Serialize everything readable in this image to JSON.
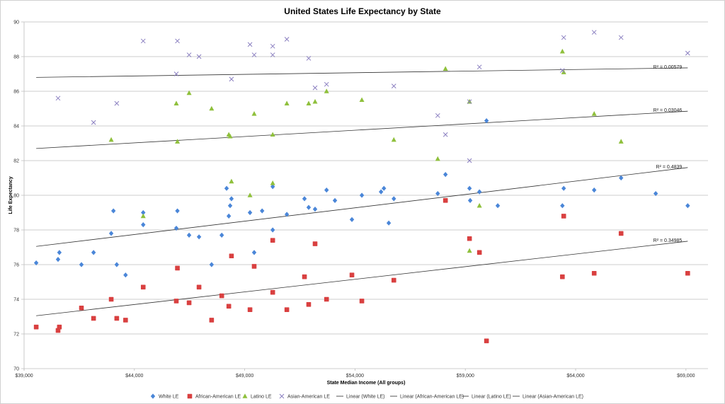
{
  "chart_data": {
    "type": "scatter",
    "title": "United States Life Expectancy by State",
    "xlabel": "State Median Income (All groups)",
    "ylabel": "Life Expectancy",
    "xlim": [
      39000,
      70000
    ],
    "ylim": [
      70,
      90
    ],
    "xticks": [
      39000,
      44000,
      49000,
      54000,
      59000,
      64000,
      69000
    ],
    "xtick_labels": [
      "$39,000",
      "$44,000",
      "$49,000",
      "$54,000",
      "$59,000",
      "$64,000",
      "$69,000"
    ],
    "yticks": [
      70,
      72,
      74,
      76,
      78,
      80,
      82,
      84,
      86,
      88,
      90
    ],
    "ytick_labels": [
      "70",
      "72",
      "74",
      "76",
      "78",
      "80",
      "82",
      "84",
      "86",
      "88",
      "90"
    ],
    "grid": true,
    "legend_position": "bottom",
    "series": [
      {
        "name": "White LE",
        "marker": "diamond",
        "color": "#4a86d8",
        "points": [
          [
            39550,
            76.1
          ],
          [
            40540,
            76.3
          ],
          [
            40600,
            76.7
          ],
          [
            41600,
            76.0
          ],
          [
            42150,
            76.7
          ],
          [
            42950,
            77.8
          ],
          [
            43050,
            79.1
          ],
          [
            43200,
            76.0
          ],
          [
            43600,
            75.4
          ],
          [
            44400,
            79.0
          ],
          [
            44400,
            78.3
          ],
          [
            45900,
            78.1
          ],
          [
            45950,
            79.1
          ],
          [
            46480,
            77.7
          ],
          [
            46930,
            77.6
          ],
          [
            47500,
            76.0
          ],
          [
            47960,
            77.7
          ],
          [
            48180,
            80.4
          ],
          [
            48280,
            78.8
          ],
          [
            48340,
            79.4
          ],
          [
            48400,
            79.8
          ],
          [
            49240,
            79.0
          ],
          [
            49430,
            76.7
          ],
          [
            49790,
            79.1
          ],
          [
            50270,
            78.0
          ],
          [
            50270,
            80.5
          ],
          [
            50910,
            78.9
          ],
          [
            51710,
            79.8
          ],
          [
            51900,
            79.3
          ],
          [
            52190,
            79.2
          ],
          [
            52710,
            80.3
          ],
          [
            53090,
            79.7
          ],
          [
            53860,
            78.6
          ],
          [
            54310,
            80.0
          ],
          [
            55180,
            80.2
          ],
          [
            55310,
            80.4
          ],
          [
            55530,
            78.4
          ],
          [
            55760,
            79.8
          ],
          [
            57750,
            80.1
          ],
          [
            58100,
            81.2
          ],
          [
            59190,
            80.4
          ],
          [
            59220,
            79.7
          ],
          [
            59640,
            80.2
          ],
          [
            59960,
            84.3
          ],
          [
            60470,
            79.4
          ],
          [
            63400,
            79.4
          ],
          [
            63460,
            80.4
          ],
          [
            64840,
            80.3
          ],
          [
            66060,
            81.0
          ],
          [
            67630,
            80.1
          ],
          [
            69080,
            79.4
          ]
        ]
      },
      {
        "name": "African-American LE",
        "marker": "square",
        "color": "#d94040",
        "points": [
          [
            39550,
            72.4
          ],
          [
            40540,
            72.2
          ],
          [
            40600,
            72.4
          ],
          [
            41600,
            73.5
          ],
          [
            42150,
            72.9
          ],
          [
            42950,
            74.0
          ],
          [
            43200,
            72.9
          ],
          [
            43600,
            72.8
          ],
          [
            44400,
            74.7
          ],
          [
            45900,
            73.9
          ],
          [
            45950,
            75.8
          ],
          [
            46480,
            73.8
          ],
          [
            46930,
            74.7
          ],
          [
            47500,
            72.8
          ],
          [
            47960,
            74.2
          ],
          [
            48280,
            73.6
          ],
          [
            48400,
            76.5
          ],
          [
            49240,
            73.4
          ],
          [
            49430,
            75.9
          ],
          [
            50270,
            77.4
          ],
          [
            50270,
            74.4
          ],
          [
            50910,
            73.4
          ],
          [
            51710,
            75.3
          ],
          [
            51900,
            73.7
          ],
          [
            52190,
            77.2
          ],
          [
            52710,
            74.0
          ],
          [
            53860,
            75.4
          ],
          [
            54310,
            73.9
          ],
          [
            55760,
            75.1
          ],
          [
            58100,
            79.7
          ],
          [
            59190,
            77.5
          ],
          [
            59640,
            76.7
          ],
          [
            59960,
            71.6
          ],
          [
            63400,
            75.3
          ],
          [
            63460,
            78.8
          ],
          [
            64840,
            75.5
          ],
          [
            66060,
            77.8
          ],
          [
            69080,
            75.5
          ]
        ]
      },
      {
        "name": "Latino LE",
        "marker": "triangle",
        "color": "#8fc03c",
        "points": [
          [
            42950,
            83.2
          ],
          [
            44400,
            78.8
          ],
          [
            45950,
            83.1
          ],
          [
            45900,
            85.3
          ],
          [
            46480,
            85.9
          ],
          [
            47500,
            85.0
          ],
          [
            48280,
            83.5
          ],
          [
            48340,
            83.4
          ],
          [
            48400,
            80.8
          ],
          [
            49240,
            80.0
          ],
          [
            49430,
            84.7
          ],
          [
            50270,
            83.5
          ],
          [
            50270,
            80.7
          ],
          [
            50910,
            85.3
          ],
          [
            51900,
            85.3
          ],
          [
            52190,
            85.4
          ],
          [
            52710,
            86.0
          ],
          [
            54310,
            85.5
          ],
          [
            55760,
            83.2
          ],
          [
            57750,
            82.1
          ],
          [
            58100,
            87.3
          ],
          [
            59190,
            85.4
          ],
          [
            59190,
            76.8
          ],
          [
            59640,
            79.4
          ],
          [
            63400,
            88.3
          ],
          [
            63460,
            87.1
          ],
          [
            64840,
            84.7
          ],
          [
            66060,
            83.1
          ]
        ]
      },
      {
        "name": "Asian-American LE",
        "marker": "x",
        "color": "#8a7fc0",
        "points": [
          [
            40540,
            85.6
          ],
          [
            42150,
            84.2
          ],
          [
            43200,
            85.3
          ],
          [
            44400,
            88.9
          ],
          [
            45900,
            87.0
          ],
          [
            45950,
            88.9
          ],
          [
            46480,
            88.1
          ],
          [
            46930,
            88.0
          ],
          [
            48400,
            86.7
          ],
          [
            49240,
            88.7
          ],
          [
            49430,
            88.1
          ],
          [
            50270,
            88.6
          ],
          [
            50270,
            88.1
          ],
          [
            50910,
            89.0
          ],
          [
            51900,
            87.9
          ],
          [
            52190,
            86.2
          ],
          [
            52710,
            86.4
          ],
          [
            55760,
            86.3
          ],
          [
            57750,
            84.6
          ],
          [
            58100,
            83.5
          ],
          [
            59190,
            85.4
          ],
          [
            59190,
            82.0
          ],
          [
            59640,
            87.4
          ],
          [
            63400,
            87.2
          ],
          [
            63460,
            89.1
          ],
          [
            64840,
            89.4
          ],
          [
            66060,
            89.1
          ],
          [
            69080,
            88.2
          ]
        ]
      }
    ],
    "trendlines": [
      {
        "name": "Linear (White LE)",
        "from": [
          39550,
          77.05
        ],
        "to": [
          69080,
          81.6
        ],
        "r2_label": "R² = 0.4839"
      },
      {
        "name": "Linear (African-American LE)",
        "from": [
          39550,
          73.05
        ],
        "to": [
          69080,
          77.35
        ],
        "r2_label": "R² = 0.34985"
      },
      {
        "name": "Linear (Latino LE)",
        "from": [
          39550,
          82.7
        ],
        "to": [
          69080,
          84.85
        ],
        "r2_label": "R² = 0.03046"
      },
      {
        "name": "Linear (Asian-American LE)",
        "from": [
          39550,
          86.8
        ],
        "to": [
          69080,
          87.35
        ],
        "r2_label": "R² = 0.00579"
      }
    ]
  }
}
